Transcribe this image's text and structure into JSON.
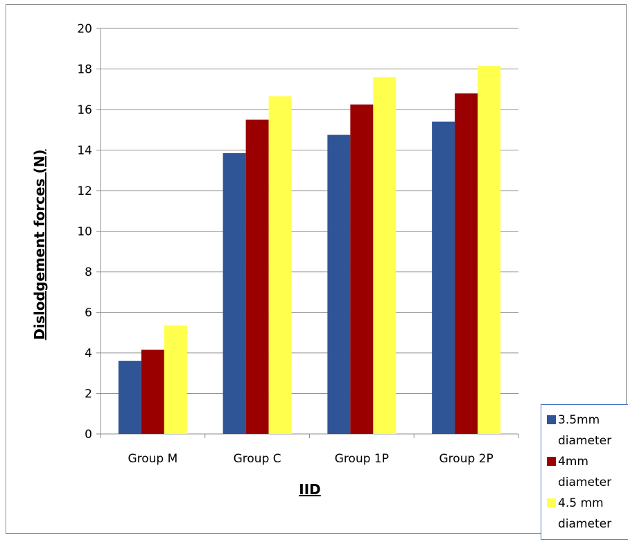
{
  "chart_data": {
    "type": "bar",
    "title": "",
    "xlabel": "IID",
    "ylabel": "Dislodgement forces (N)",
    "ylim": [
      0,
      20
    ],
    "yticks": [
      "0",
      "2",
      "4",
      "6",
      "8",
      "10",
      "12",
      "14",
      "16",
      "18",
      "20"
    ],
    "grid": true,
    "legend_position": "bottom-right",
    "categories": [
      "Group M",
      "Group C",
      "Group 1P",
      "Group 2P"
    ],
    "series": [
      {
        "name": "3.5mm diameter",
        "color": "#2f5597",
        "values": [
          3.6,
          13.85,
          14.75,
          15.4
        ]
      },
      {
        "name": "4mm diameter",
        "color": "#9b0000",
        "values": [
          4.15,
          15.5,
          16.25,
          16.8
        ]
      },
      {
        "name": "4.5 mm diameter",
        "color": "#ffff4d",
        "values": [
          5.35,
          16.65,
          17.6,
          18.15
        ]
      }
    ]
  }
}
